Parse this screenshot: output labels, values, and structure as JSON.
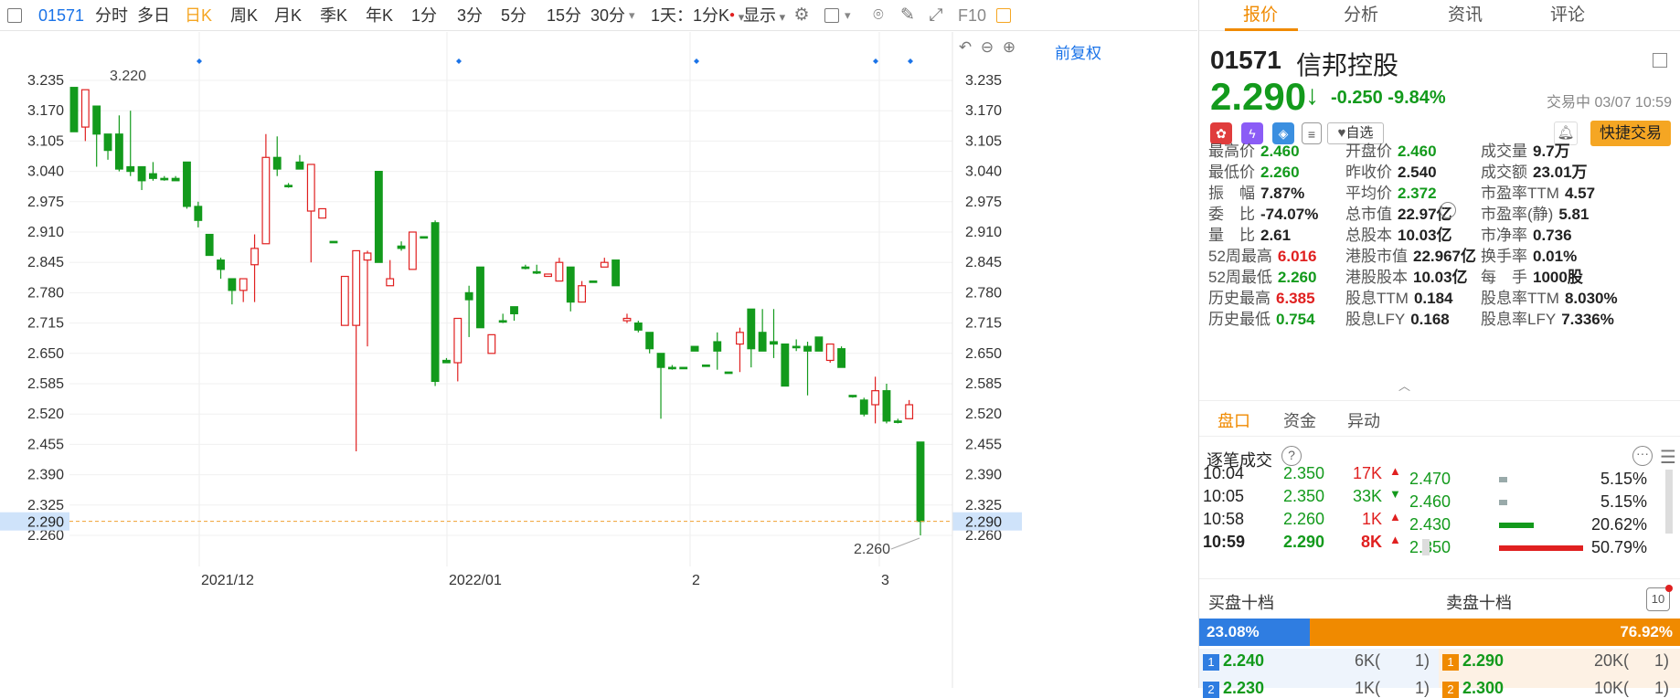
{
  "toolbar": {
    "code": "01571",
    "periods": [
      "分时",
      "多日",
      "日K",
      "周K",
      "月K",
      "季K",
      "年K",
      "1分",
      "3分",
      "5分",
      "15分",
      "30分"
    ],
    "active_period": "日K",
    "interval": "1天：1分K",
    "display": "显示",
    "f10": "F10"
  },
  "chart": {
    "restore_label": "前复权",
    "y_ticks": [
      "3.235",
      "3.170",
      "3.105",
      "3.040",
      "2.975",
      "2.910",
      "2.845",
      "2.780",
      "2.715",
      "2.650",
      "2.585",
      "2.520",
      "2.455",
      "2.390",
      "2.325",
      "2.260"
    ],
    "x_labels": [
      "2021/12",
      "2022/01",
      "2",
      "3"
    ],
    "current_price": "2.290",
    "high_annotation": "3.220",
    "low_annotation": "2.260"
  },
  "chart_data": {
    "type": "candlestick",
    "up_color": "#e02020",
    "down_color": "#139a1c",
    "current_price": 2.29,
    "ylim": [
      2.24,
      3.255
    ],
    "candles": [
      {
        "o": 3.22,
        "c": 3.125,
        "h": 3.22,
        "l": 3.125
      },
      {
        "o": 3.135,
        "c": 3.215,
        "h": 3.215,
        "l": 3.105
      },
      {
        "o": 3.18,
        "c": 3.12,
        "h": 3.18,
        "l": 3.05
      },
      {
        "o": 3.12,
        "c": 3.085,
        "h": 3.11,
        "l": 3.065
      },
      {
        "o": 3.12,
        "c": 3.045,
        "h": 3.16,
        "l": 3.04
      },
      {
        "o": 3.05,
        "c": 3.04,
        "h": 3.17,
        "l": 3.03
      },
      {
        "o": 3.05,
        "c": 3.02,
        "h": 3.04,
        "l": 3.0
      },
      {
        "o": 3.035,
        "c": 3.025,
        "h": 3.06,
        "l": 3.02
      },
      {
        "o": 3.025,
        "c": 3.025,
        "h": 3.03,
        "l": 3.02
      },
      {
        "o": 3.025,
        "c": 3.02,
        "h": 3.03,
        "l": 3.02
      },
      {
        "o": 3.06,
        "c": 2.965,
        "h": 3.06,
        "l": 2.96
      },
      {
        "o": 2.965,
        "c": 2.935,
        "h": 2.975,
        "l": 2.92
      },
      {
        "o": 2.905,
        "c": 2.86,
        "h": 2.905,
        "l": 2.86
      },
      {
        "o": 2.85,
        "c": 2.83,
        "h": 2.855,
        "l": 2.81
      },
      {
        "o": 2.81,
        "c": 2.785,
        "h": 2.81,
        "l": 2.755
      },
      {
        "o": 2.785,
        "c": 2.81,
        "h": 2.81,
        "l": 2.76
      },
      {
        "o": 2.84,
        "c": 2.875,
        "h": 2.905,
        "l": 2.76
      },
      {
        "o": 2.885,
        "c": 3.07,
        "h": 3.12,
        "l": 2.885
      },
      {
        "o": 3.07,
        "c": 3.045,
        "h": 3.115,
        "l": 3.03
      },
      {
        "o": 3.01,
        "c": 3.01,
        "h": 3.015,
        "l": 3.005
      },
      {
        "o": 3.06,
        "c": 3.045,
        "h": 3.075,
        "l": 3.05
      },
      {
        "o": 2.955,
        "c": 3.055,
        "h": 3.055,
        "l": 2.845
      },
      {
        "o": 2.94,
        "c": 2.96,
        "h": 2.96,
        "l": 2.94
      },
      {
        "o": 2.89,
        "c": 2.89,
        "h": 2.89,
        "l": 2.89
      },
      {
        "o": 2.71,
        "c": 2.815,
        "h": 2.815,
        "l": 2.71
      },
      {
        "o": 2.71,
        "c": 2.87,
        "h": 2.87,
        "l": 2.44
      },
      {
        "o": 2.85,
        "c": 2.865,
        "h": 2.87,
        "l": 2.665
      },
      {
        "o": 3.04,
        "c": 2.845,
        "h": 3.04,
        "l": 2.845
      },
      {
        "o": 2.795,
        "c": 2.81,
        "h": 2.85,
        "l": 2.795
      },
      {
        "o": 2.88,
        "c": 2.875,
        "h": 2.89,
        "l": 2.87
      },
      {
        "o": 2.83,
        "c": 2.91,
        "h": 2.91,
        "l": 2.83
      },
      {
        "o": 2.9,
        "c": 2.9,
        "h": 2.9,
        "l": 2.9
      },
      {
        "o": 2.93,
        "c": 2.59,
        "h": 2.935,
        "l": 2.58
      },
      {
        "o": 2.635,
        "c": 2.63,
        "h": 2.64,
        "l": 2.63
      },
      {
        "o": 2.63,
        "c": 2.725,
        "h": 2.725,
        "l": 2.59
      },
      {
        "o": 2.78,
        "c": 2.765,
        "h": 2.795,
        "l": 2.685
      },
      {
        "o": 2.835,
        "c": 2.705,
        "h": 2.835,
        "l": 2.705
      },
      {
        "o": 2.65,
        "c": 2.69,
        "h": 2.69,
        "l": 2.65
      },
      {
        "o": 2.72,
        "c": 2.72,
        "h": 2.735,
        "l": 2.715
      },
      {
        "o": 2.75,
        "c": 2.735,
        "h": 2.75,
        "l": 2.72
      },
      {
        "o": 2.835,
        "c": 2.835,
        "h": 2.84,
        "l": 2.83
      },
      {
        "o": 2.825,
        "c": 2.825,
        "h": 2.84,
        "l": 2.82
      },
      {
        "o": 2.815,
        "c": 2.82,
        "h": 2.815,
        "l": 2.815
      },
      {
        "o": 2.805,
        "c": 2.845,
        "h": 2.855,
        "l": 2.805
      },
      {
        "o": 2.835,
        "c": 2.76,
        "h": 2.835,
        "l": 2.74
      },
      {
        "o": 2.76,
        "c": 2.795,
        "h": 2.805,
        "l": 2.76
      },
      {
        "o": 2.805,
        "c": 2.805,
        "h": 2.805,
        "l": 2.805
      },
      {
        "o": 2.835,
        "c": 2.845,
        "h": 2.855,
        "l": 2.835
      },
      {
        "o": 2.85,
        "c": 2.795,
        "h": 2.85,
        "l": 2.795
      },
      {
        "o": 2.72,
        "c": 2.725,
        "h": 2.735,
        "l": 2.715
      },
      {
        "o": 2.715,
        "c": 2.7,
        "h": 2.72,
        "l": 2.695
      },
      {
        "o": 2.695,
        "c": 2.66,
        "h": 2.695,
        "l": 2.65
      },
      {
        "o": 2.65,
        "c": 2.62,
        "h": 2.65,
        "l": 2.51
      },
      {
        "o": 2.62,
        "c": 2.62,
        "h": 2.625,
        "l": 2.615
      },
      {
        "o": 2.62,
        "c": 2.62,
        "h": 2.62,
        "l": 2.62
      },
      {
        "o": 2.665,
        "c": 2.655,
        "h": 2.655,
        "l": 2.655
      },
      {
        "o": 2.625,
        "c": 2.625,
        "h": 2.625,
        "l": 2.625
      },
      {
        "o": 2.675,
        "c": 2.655,
        "h": 2.695,
        "l": 2.615
      },
      {
        "o": 2.61,
        "c": 2.61,
        "h": 2.61,
        "l": 2.61
      },
      {
        "o": 2.67,
        "c": 2.695,
        "h": 2.705,
        "l": 2.61
      },
      {
        "o": 2.745,
        "c": 2.66,
        "h": 2.745,
        "l": 2.62
      },
      {
        "o": 2.695,
        "c": 2.655,
        "h": 2.745,
        "l": 2.655
      },
      {
        "o": 2.675,
        "c": 2.67,
        "h": 2.745,
        "l": 2.64
      },
      {
        "o": 2.67,
        "c": 2.58,
        "h": 2.67,
        "l": 2.58
      },
      {
        "o": 2.665,
        "c": 2.665,
        "h": 2.68,
        "l": 2.655
      },
      {
        "o": 2.665,
        "c": 2.655,
        "h": 2.675,
        "l": 2.56
      },
      {
        "o": 2.685,
        "c": 2.655,
        "h": 2.685,
        "l": 2.655
      },
      {
        "o": 2.635,
        "c": 2.67,
        "h": 2.67,
        "l": 2.63
      },
      {
        "o": 2.66,
        "c": 2.62,
        "h": 2.665,
        "l": 2.62
      },
      {
        "o": 2.56,
        "c": 2.56,
        "h": 2.56,
        "l": 2.555
      },
      {
        "o": 2.55,
        "c": 2.52,
        "h": 2.555,
        "l": 2.515
      },
      {
        "o": 2.54,
        "c": 2.57,
        "h": 2.6,
        "l": 2.5
      },
      {
        "o": 2.57,
        "c": 2.505,
        "h": 2.585,
        "l": 2.5
      },
      {
        "o": 2.505,
        "c": 2.505,
        "h": 2.51,
        "l": 2.5
      },
      {
        "o": 2.51,
        "c": 2.54,
        "h": 2.55,
        "l": 2.51
      },
      {
        "o": 2.46,
        "c": 2.29,
        "h": 2.46,
        "l": 2.26
      }
    ]
  },
  "panel": {
    "tabs": [
      "报价",
      "分析",
      "资讯",
      "评论"
    ],
    "code": "01571",
    "name": "信邦控股",
    "price": "2.290",
    "arrow": "↓",
    "change": "-0.250",
    "change_pct": "-9.84%",
    "status": "交易中 03/07 10:59",
    "watch": "自选",
    "quick_trade": "快捷交易",
    "stats": [
      [
        {
          "l": "最高价",
          "v": "2.460",
          "c": "g"
        },
        {
          "l": "开盘价",
          "v": "2.460",
          "c": "g"
        },
        {
          "l": "成交量",
          "v": "9.7万",
          "c": "k"
        }
      ],
      [
        {
          "l": "最低价",
          "v": "2.260",
          "c": "g"
        },
        {
          "l": "昨收价",
          "v": "2.540",
          "c": "k"
        },
        {
          "l": "成交额",
          "v": "23.01万",
          "c": "k"
        }
      ],
      [
        {
          "l": "振　幅",
          "v": "7.87%",
          "c": "k"
        },
        {
          "l": "平均价",
          "v": "2.372",
          "c": "g"
        },
        {
          "l": "市盈率TTM",
          "v": "4.57",
          "c": "k"
        }
      ],
      [
        {
          "l": "委　比",
          "v": "-74.07%",
          "c": "k"
        },
        {
          "l": "总市值",
          "v": "22.97亿",
          "c": "k"
        },
        {
          "l": "市盈率(静)",
          "v": "5.81",
          "c": "k"
        }
      ],
      [
        {
          "l": "量　比",
          "v": "2.61",
          "c": "k"
        },
        {
          "l": "总股本",
          "v": "10.03亿",
          "c": "k"
        },
        {
          "l": "市净率",
          "v": "0.736",
          "c": "k"
        }
      ],
      [
        {
          "l": "52周最高",
          "v": "6.016",
          "c": "r"
        },
        {
          "l": "港股市值",
          "v": "22.967亿",
          "c": "k"
        },
        {
          "l": "换手率",
          "v": "0.01%",
          "c": "k"
        }
      ],
      [
        {
          "l": "52周最低",
          "v": "2.260",
          "c": "g"
        },
        {
          "l": "港股股本",
          "v": "10.03亿",
          "c": "k"
        },
        {
          "l": "每　手",
          "v": "1000股",
          "c": "k"
        }
      ],
      [
        {
          "l": "历史最高",
          "v": "6.385",
          "c": "r"
        },
        {
          "l": "股息TTM",
          "v": "0.184",
          "c": "k"
        },
        {
          "l": "股息率TTM",
          "v": "8.030%",
          "c": "k"
        }
      ],
      [
        {
          "l": "历史最低",
          "v": "0.754",
          "c": "g"
        },
        {
          "l": "股息LFY",
          "v": "0.168",
          "c": "k"
        },
        {
          "l": "股息率LFY",
          "v": "7.336%",
          "c": "k"
        }
      ]
    ],
    "subtabs": [
      "盘口",
      "资金",
      "异动"
    ],
    "ticks_title": "逐笔成交",
    "ticks": [
      {
        "t": "10:04",
        "p": "2.350",
        "v": "17K",
        "d": "up"
      },
      {
        "t": "10:05",
        "p": "2.350",
        "v": "33K",
        "d": "down"
      },
      {
        "t": "10:58",
        "p": "2.260",
        "v": "1K",
        "d": "up"
      },
      {
        "t": "10:59",
        "p": "2.290",
        "v": "8K",
        "d": "up"
      }
    ],
    "dist": [
      {
        "p": "2.470",
        "pct": "5.15%",
        "frac": 0.05
      },
      {
        "p": "2.460",
        "pct": "5.15%",
        "frac": 0.05
      },
      {
        "p": "2.430",
        "pct": "20.62%",
        "frac": 0.21
      },
      {
        "p": "2.350",
        "pct": "50.79%",
        "frac": 0.51
      }
    ],
    "buy_title": "买盘十档",
    "sell_title": "卖盘十档",
    "book_count": "10",
    "buy_pct": "23.08%",
    "sell_pct": "76.92%",
    "buy_frac": 0.2308,
    "bids": [
      {
        "n": "1",
        "p": "2.240",
        "v": "6K(",
        "o": "1)"
      },
      {
        "n": "2",
        "p": "2.230",
        "v": "1K(",
        "o": "1)"
      }
    ],
    "asks": [
      {
        "n": "1",
        "p": "2.290",
        "v": "20K(",
        "o": "1)"
      },
      {
        "n": "2",
        "p": "2.300",
        "v": "10K(",
        "o": "1)"
      }
    ]
  }
}
